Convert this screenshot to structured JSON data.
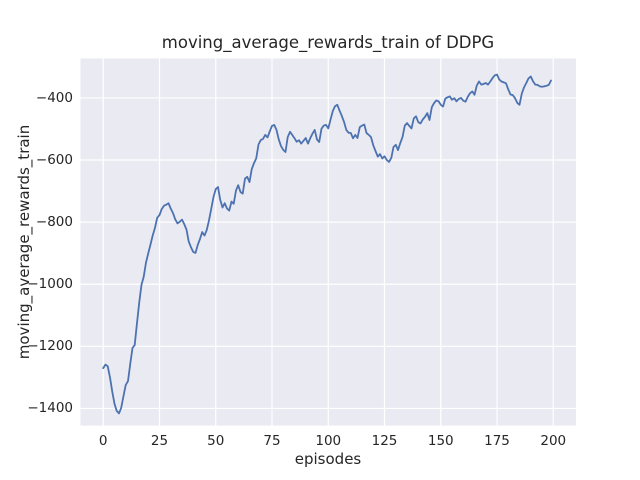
{
  "chart_data": {
    "type": "line",
    "title": "moving_average_rewards_train of DDPG",
    "xlabel": "episodes",
    "ylabel": "moving_average_rewards_train",
    "x_ticks": [
      0,
      25,
      50,
      75,
      100,
      125,
      150,
      175,
      200
    ],
    "y_ticks": [
      -400,
      -600,
      -800,
      -1000,
      -1200,
      -1400
    ],
    "xlim": [
      -10.1,
      210.1
    ],
    "ylim": [
      -1455,
      -273
    ],
    "grid": true,
    "legend_position": "none",
    "style": {
      "line_color": "#4C72B0",
      "plot_background": "#EAEAF2",
      "grid_color": "#FFFFFF",
      "text_color": "#262626",
      "figure_background": "#FFFFFF"
    },
    "series": [
      {
        "name": "moving_average_rewards_train",
        "x_start": 0,
        "x_step": 1,
        "values": [
          -1270,
          -1259,
          -1264,
          -1300,
          -1345,
          -1385,
          -1408,
          -1416,
          -1398,
          -1360,
          -1325,
          -1312,
          -1258,
          -1205,
          -1196,
          -1125,
          -1060,
          -1002,
          -976,
          -930,
          -901,
          -872,
          -843,
          -818,
          -786,
          -777,
          -758,
          -747,
          -744,
          -739,
          -756,
          -771,
          -791,
          -804,
          -799,
          -792,
          -806,
          -824,
          -862,
          -881,
          -896,
          -899,
          -874,
          -854,
          -832,
          -843,
          -826,
          -794,
          -758,
          -719,
          -694,
          -687,
          -728,
          -753,
          -739,
          -756,
          -763,
          -734,
          -741,
          -698,
          -681,
          -703,
          -708,
          -660,
          -654,
          -671,
          -630,
          -610,
          -595,
          -550,
          -536,
          -532,
          -519,
          -527,
          -508,
          -490,
          -487,
          -503,
          -533,
          -555,
          -567,
          -574,
          -526,
          -509,
          -519,
          -530,
          -541,
          -536,
          -547,
          -538,
          -529,
          -547,
          -530,
          -515,
          -503,
          -534,
          -542,
          -499,
          -489,
          -487,
          -498,
          -470,
          -442,
          -427,
          -422,
          -440,
          -458,
          -477,
          -503,
          -512,
          -513,
          -530,
          -519,
          -529,
          -494,
          -489,
          -486,
          -513,
          -519,
          -526,
          -553,
          -571,
          -589,
          -581,
          -595,
          -588,
          -600,
          -606,
          -593,
          -558,
          -551,
          -568,
          -545,
          -526,
          -489,
          -481,
          -490,
          -498,
          -466,
          -459,
          -478,
          -482,
          -469,
          -461,
          -449,
          -471,
          -430,
          -417,
          -408,
          -411,
          -422,
          -428,
          -402,
          -398,
          -395,
          -406,
          -401,
          -411,
          -403,
          -400,
          -409,
          -412,
          -396,
          -385,
          -379,
          -390,
          -360,
          -347,
          -357,
          -355,
          -352,
          -357,
          -347,
          -336,
          -327,
          -325,
          -341,
          -347,
          -350,
          -353,
          -373,
          -389,
          -391,
          -401,
          -416,
          -422,
          -386,
          -366,
          -352,
          -337,
          -331,
          -346,
          -357,
          -358,
          -363,
          -364,
          -363,
          -361,
          -358,
          -344
        ]
      }
    ]
  }
}
